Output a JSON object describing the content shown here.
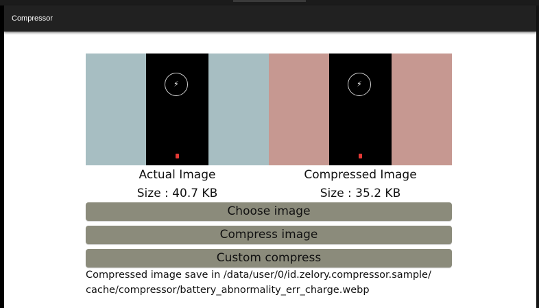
{
  "appbar": {
    "title": "Compressor"
  },
  "icons": {
    "charge": "lightning-bolt-icon",
    "battery": "battery-low-icon"
  },
  "colors": {
    "appbar": "#212121",
    "actual_bg": "#a7bec2",
    "compressed_bg": "#c69891",
    "button": "#8b8b7b",
    "battery_red": "#e53935"
  },
  "actual": {
    "label": "Actual Image",
    "size": "Size : 40.7 KB"
  },
  "compressed": {
    "label": "Compressed Image",
    "size": "Size : 35.2 KB"
  },
  "buttons": {
    "choose": "Choose image",
    "compress": "Compress image",
    "custom": "Custom compress"
  },
  "result": {
    "line1": "Compressed image save in /data/user/0/id.zelory.compressor.sample/",
    "line2": "cache/compressor/battery_abnormality_err_charge.webp"
  }
}
